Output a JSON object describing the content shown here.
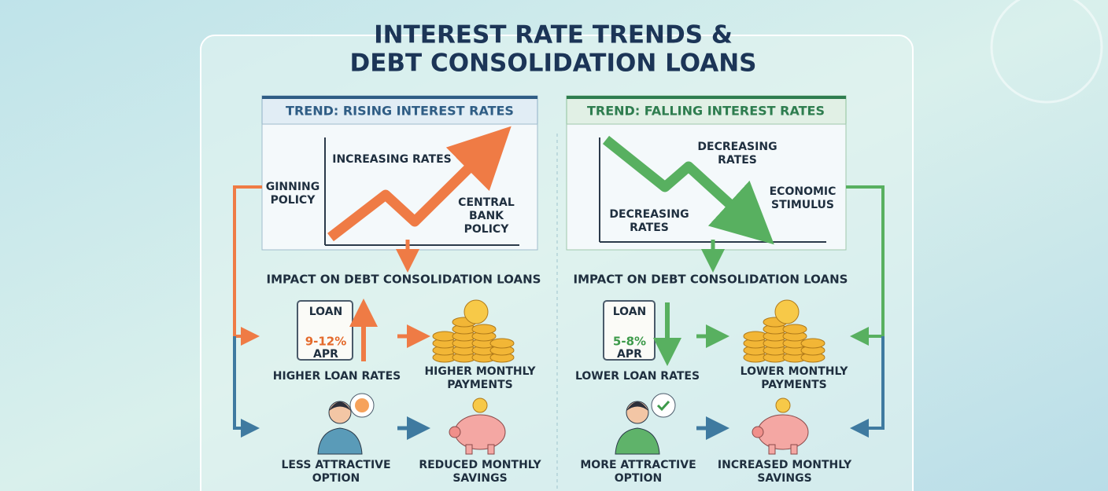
{
  "title": [
    "INTEREST RATE TRENDS &",
    "DEBT CONSOLIDATION LOANS"
  ],
  "panels": [
    {
      "header": "TREND: RISING INTEREST RATES",
      "chart_labels": [
        [
          "INCREASING RATES"
        ],
        [
          "GINNING",
          "POLICY"
        ],
        [
          "CENTRAL",
          "BANK",
          "POLICY"
        ]
      ],
      "impact_title": "IMPACT ON DEBT CONSOLIDATION LOANS",
      "loan": {
        "label": "LOAN",
        "rate": "9-12%",
        "unit": "APR"
      },
      "effects": [
        [
          "HIGHER LOAN RATES"
        ],
        [
          "HIGHER MONTHLY",
          "PAYMENTS"
        ],
        [
          "LESS ATTRACTIVE",
          "OPTION"
        ],
        [
          "REDUCED MONTHLY",
          "SAVINGS"
        ]
      ]
    },
    {
      "header": "TREND: FALLING INTEREST RATES",
      "chart_labels": [
        [
          "DECREASING",
          "RATES"
        ],
        [
          "ECONOMIC",
          "STIMULUS"
        ],
        [
          "DECREASING",
          "RATES"
        ]
      ],
      "impact_title": "IMPACT ON DEBT CONSOLIDATION LOANS",
      "loan": {
        "label": "LOAN",
        "rate": "5-8%",
        "unit": "APR"
      },
      "effects": [
        [
          "LOWER LOAN RATES"
        ],
        [
          "LOWER MONTHLY",
          "PAYMENTS"
        ],
        [
          "MORE ATTRACTIVE",
          "OPTION"
        ],
        [
          "INCREASED MONTHLY",
          "SAVINGS"
        ]
      ]
    }
  ]
}
